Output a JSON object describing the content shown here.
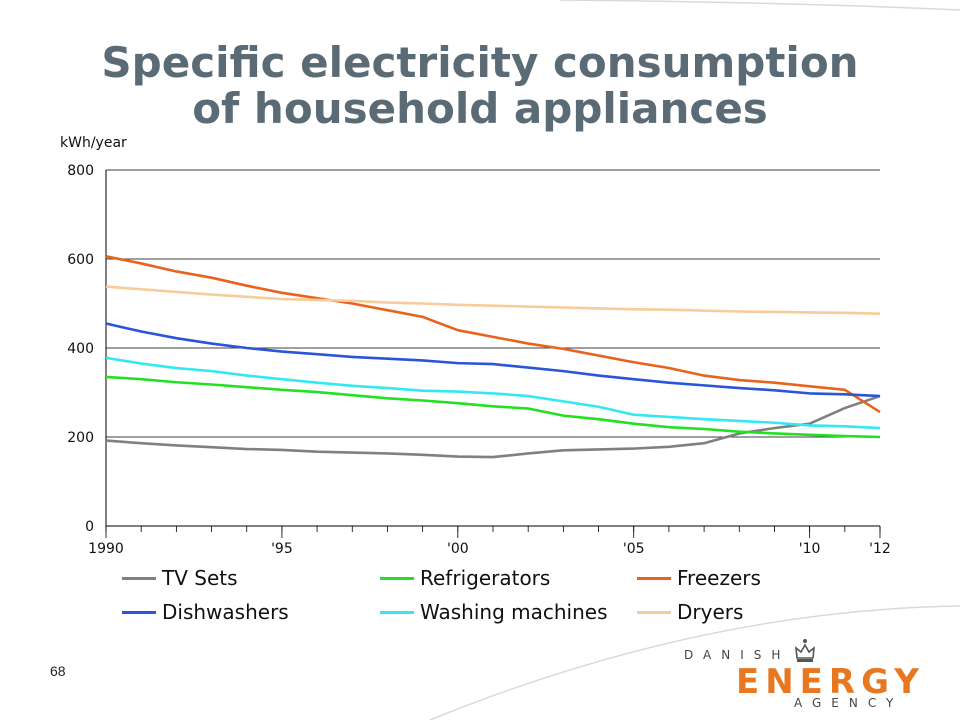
{
  "title_line1": "Specific electricity consumption",
  "title_line2": "of household appliances",
  "page_number": "68",
  "logo": {
    "top": "DANISH",
    "main": "ENERGY",
    "bottom": "AGENCY"
  },
  "chart_data": {
    "type": "line",
    "ylabel": "kWh/year",
    "ylim": [
      0,
      800
    ],
    "yticks": [
      0,
      200,
      400,
      600,
      800
    ],
    "xlim": [
      1990,
      2012
    ],
    "xticks": [
      {
        "value": 1990,
        "label": "1990"
      },
      {
        "value": 1995,
        "label": "'95"
      },
      {
        "value": 2000,
        "label": "'00"
      },
      {
        "value": 2005,
        "label": "'05"
      },
      {
        "value": 2010,
        "label": "'10"
      },
      {
        "value": 2012,
        "label": "'12"
      }
    ],
    "grid": "horizontal",
    "legend_position": "bottom",
    "x": [
      1990,
      1991,
      1992,
      1993,
      1994,
      1995,
      1996,
      1997,
      1998,
      1999,
      2000,
      2001,
      2002,
      2003,
      2004,
      2005,
      2006,
      2007,
      2008,
      2009,
      2010,
      2011,
      2012
    ],
    "series": [
      {
        "name": "TV Sets",
        "color": "#808080",
        "values": [
          192,
          186,
          181,
          177,
          173,
          171,
          167,
          165,
          163,
          160,
          156,
          155,
          163,
          170,
          172,
          174,
          178,
          186,
          208,
          220,
          230,
          265,
          292
        ]
      },
      {
        "name": "Refrigerators",
        "color": "#22e022",
        "values": [
          335,
          330,
          323,
          318,
          312,
          306,
          301,
          294,
          287,
          282,
          276,
          269,
          264,
          248,
          240,
          230,
          222,
          218,
          212,
          208,
          205,
          202,
          200
        ]
      },
      {
        "name": "Freezers",
        "color": "#e8641e",
        "values": [
          606,
          590,
          572,
          558,
          540,
          524,
          512,
          500,
          485,
          470,
          440,
          425,
          410,
          398,
          383,
          368,
          355,
          338,
          328,
          322,
          314,
          306,
          256
        ]
      },
      {
        "name": "Dishwashers",
        "color": "#2a55d8",
        "values": [
          455,
          437,
          422,
          410,
          400,
          392,
          386,
          380,
          376,
          372,
          366,
          364,
          356,
          348,
          338,
          330,
          322,
          316,
          310,
          305,
          298,
          296,
          292
        ]
      },
      {
        "name": "Washing machines",
        "color": "#33e8f2",
        "values": [
          378,
          365,
          355,
          348,
          338,
          330,
          322,
          315,
          310,
          304,
          302,
          298,
          292,
          280,
          268,
          250,
          245,
          240,
          236,
          232,
          226,
          224,
          220
        ]
      },
      {
        "name": "Dryers",
        "color": "#f8cc9a",
        "values": [
          538,
          532,
          526,
          520,
          515,
          510,
          508,
          506,
          502,
          500,
          497,
          495,
          493,
          491,
          489,
          487,
          486,
          484,
          482,
          481,
          480,
          479,
          477
        ]
      }
    ]
  }
}
